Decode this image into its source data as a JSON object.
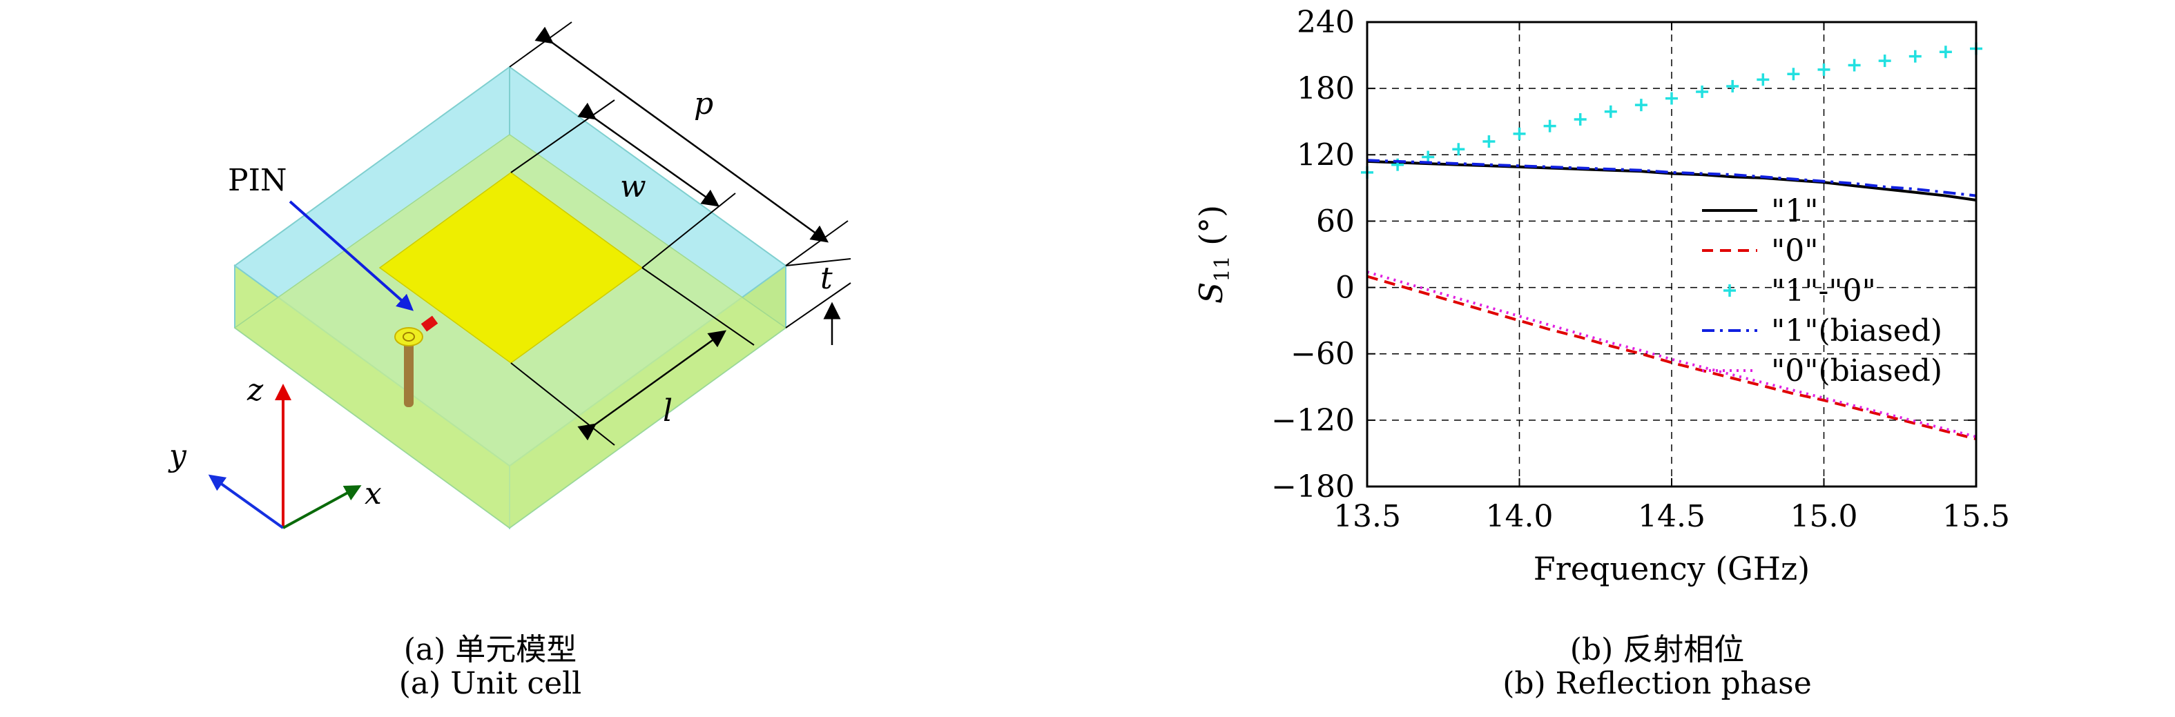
{
  "panel_a": {
    "labels": {
      "pin": "PIN",
      "p": "p",
      "w": "w",
      "l": "l",
      "t": "t",
      "z": "z",
      "y": "y",
      "x": "x"
    },
    "caption_cn": "(a) 单元模型",
    "caption_en": "(a) Unit cell",
    "colors": {
      "substrate_top": "#aee9f0",
      "ground": "#c8ee8e",
      "patch": "#eeee00",
      "pin": "#a07a3a",
      "arrow_z": "#e00000",
      "arrow_y": "#1530e0",
      "arrow_x": "#0a6a0a",
      "pin_arrow": "#1020e0"
    }
  },
  "panel_b": {
    "caption_cn": "(b) 反射相位",
    "caption_en": "(b) Reflection phase"
  },
  "chart_data": {
    "type": "line",
    "xlabel": "Frequency (GHz)",
    "ylabel_main": "S",
    "ylabel_sub": "11",
    "ylabel_unit": " (°)",
    "xlim": [
      13.5,
      15.5
    ],
    "ylim": [
      -180,
      240
    ],
    "xticks": [
      13.5,
      14.0,
      14.5,
      15.0,
      15.5
    ],
    "xtick_labels": [
      "13.5",
      "14.0",
      "14.5",
      "15.0",
      "15.5"
    ],
    "yticks": [
      -180,
      -120,
      -60,
      0,
      60,
      120,
      180,
      240
    ],
    "ytick_labels": [
      "−180",
      "−120",
      "−60",
      "0",
      "60",
      "120",
      "180",
      "240"
    ],
    "grid": true,
    "legend_position": "center-right",
    "x": [
      13.5,
      13.6,
      13.7,
      13.8,
      13.9,
      14.0,
      14.1,
      14.2,
      14.3,
      14.4,
      14.5,
      14.6,
      14.7,
      14.8,
      14.9,
      15.0,
      15.1,
      15.2,
      15.3,
      15.4,
      15.5
    ],
    "series": [
      {
        "name": "\"1\"",
        "color": "#000000",
        "dash": "none",
        "style": "line",
        "values": [
          114,
          113,
          112,
          111,
          110,
          109,
          108,
          107,
          106,
          105,
          103,
          102,
          100,
          99,
          97,
          95,
          92,
          89,
          86,
          83,
          79
        ]
      },
      {
        "name": "\"0\"",
        "color": "#e00000",
        "dash": "16,10",
        "style": "line",
        "values": [
          10,
          2,
          -6,
          -14,
          -22,
          -30,
          -38,
          -45,
          -53,
          -60,
          -68,
          -75,
          -82,
          -89,
          -96,
          -102,
          -109,
          -116,
          -123,
          -130,
          -137
        ]
      },
      {
        "name": "\"1\"-\"0\"",
        "color": "#22e0e0",
        "dash": "none",
        "style": "plus",
        "values": [
          104,
          111,
          118,
          125,
          132,
          139,
          146,
          152,
          159,
          165,
          171,
          177,
          182,
          188,
          193,
          197,
          201,
          205,
          209,
          213,
          216
        ]
      },
      {
        "name": "\"1\"(biased)",
        "color": "#1020e0",
        "dash": "18,8,4,8",
        "style": "line",
        "values": [
          115,
          114,
          113,
          112,
          111,
          110,
          109,
          108,
          107,
          106,
          104,
          103,
          102,
          100,
          98,
          96,
          94,
          91,
          89,
          86,
          83
        ]
      },
      {
        "name": "\"0\"(biased)",
        "color": "#e020e0",
        "dash": "3,7",
        "style": "line",
        "values": [
          14,
          6,
          -2,
          -10,
          -18,
          -26,
          -34,
          -42,
          -50,
          -57,
          -65,
          -72,
          -79,
          -86,
          -93,
          -100,
          -107,
          -114,
          -121,
          -128,
          -135
        ]
      }
    ]
  }
}
